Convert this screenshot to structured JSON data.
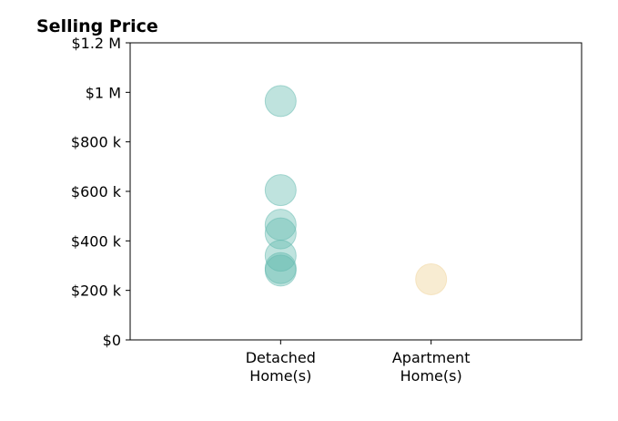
{
  "chart_data": {
    "type": "scatter",
    "title": "Selling Price",
    "xlabel": "",
    "ylabel": "",
    "categories": [
      {
        "label_lines": [
          "Detached",
          "Home(s)"
        ]
      },
      {
        "label_lines": [
          "Apartment",
          "Home(s)"
        ]
      }
    ],
    "xlim": [
      -1,
      2
    ],
    "ylim": [
      0,
      1200000
    ],
    "y_ticks": [
      {
        "value": 0,
        "label": "$0"
      },
      {
        "value": 200000,
        "label": "$200 k"
      },
      {
        "value": 400000,
        "label": "$400 k"
      },
      {
        "value": 600000,
        "label": "$600 k"
      },
      {
        "value": 800000,
        "label": "$800 k"
      },
      {
        "value": 1000000,
        "label": "$1 M"
      },
      {
        "value": 1200000,
        "label": "$1.2 M"
      }
    ],
    "grid": false,
    "series": [
      {
        "color": "#5fb8ad",
        "opacity": 0.4,
        "points": [
          {
            "x": 0,
            "y": 965000
          },
          {
            "x": 0,
            "y": 605000
          },
          {
            "x": 0,
            "y": 465000
          },
          {
            "x": 0,
            "y": 430000
          },
          {
            "x": 0,
            "y": 340000
          },
          {
            "x": 0,
            "y": 290000
          },
          {
            "x": 0,
            "y": 280000
          }
        ]
      },
      {
        "color": "#f2d9a6",
        "opacity": 0.5,
        "points": [
          {
            "x": 1,
            "y": 245000
          }
        ]
      }
    ]
  }
}
